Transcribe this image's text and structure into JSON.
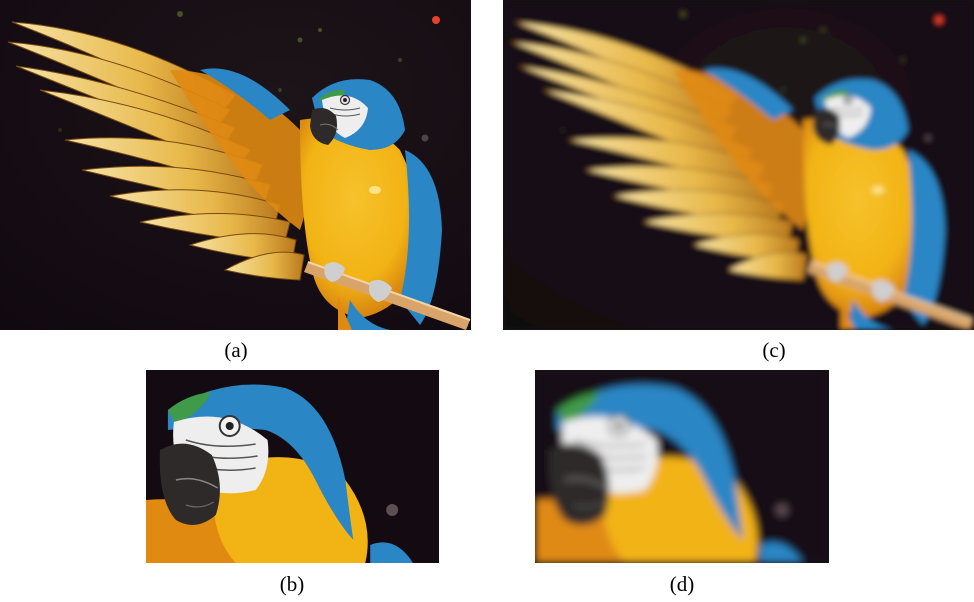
{
  "figure": {
    "panels": [
      {
        "id": "a",
        "caption": "(a)",
        "content": "full-view-sharp"
      },
      {
        "id": "b",
        "caption": "(b)",
        "content": "head-closeup-sharp"
      },
      {
        "id": "c",
        "caption": "(c)",
        "content": "full-view-blurred"
      },
      {
        "id": "d",
        "caption": "(d)",
        "content": "head-closeup-blurred"
      }
    ],
    "colors": {
      "background": "#140b12",
      "feather_gold": "#e8b84a",
      "feather_light": "#f6e3a6",
      "body_orange": "#e08a12",
      "body_yellow": "#f2b314",
      "head_blue": "#2a86c4",
      "face_white": "#eeeeee",
      "beak_dark": "#2e2a2a",
      "perch": "#d8a46a",
      "bokeh_accent": "#e8402a"
    }
  }
}
